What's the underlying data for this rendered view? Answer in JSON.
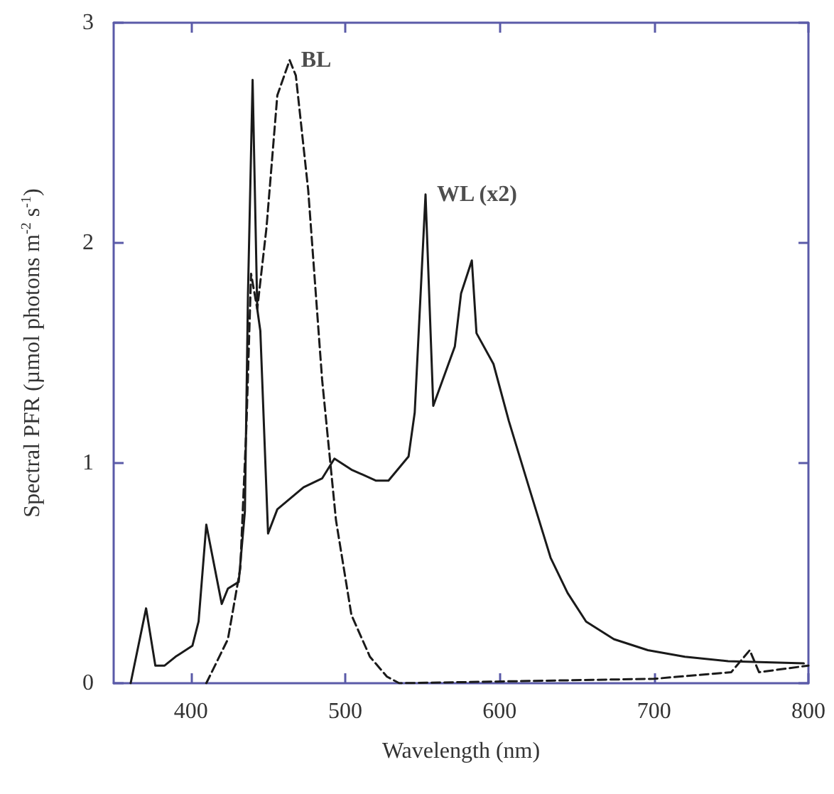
{
  "chart_data": {
    "type": "line",
    "xlabel": "Wavelength (nm)",
    "ylabel": "Spectral PFR (µmol photons m$^{-2}$ s$^{-1}$)",
    "xlim": [
      350,
      800
    ],
    "xticks": [
      400,
      500,
      600,
      700,
      800
    ],
    "ylim": [
      0,
      3
    ],
    "yticks": [
      0,
      1,
      2,
      3
    ],
    "grid": false,
    "marker": "none",
    "series": [
      {
        "color": "#1a1a1a",
        "line_style": "solid",
        "x": [
          361,
          371,
          377,
          383,
          390,
          401,
          405,
          410,
          420,
          424,
          431,
          435,
          437,
          440,
          443,
          445,
          450,
          456,
          473,
          485,
          493,
          504,
          520,
          528,
          541,
          545,
          552,
          557,
          571,
          575,
          582,
          585,
          596,
          606,
          619,
          633,
          644,
          656,
          674,
          696,
          720,
          748,
          797
        ],
        "values": [
          0,
          0.34,
          0.08,
          0.08,
          0.12,
          0.17,
          0.28,
          0.72,
          0.36,
          0.43,
          0.46,
          0.78,
          1.77,
          2.74,
          1.7,
          1.6,
          0.68,
          0.79,
          0.89,
          0.93,
          1.02,
          0.97,
          0.92,
          0.92,
          1.03,
          1.23,
          2.22,
          1.26,
          1.53,
          1.77,
          1.92,
          1.59,
          1.45,
          1.19,
          0.89,
          0.57,
          0.41,
          0.28,
          0.2,
          0.15,
          0.12,
          0.1,
          0.09
        ]
      },
      {
        "color": "#1a1a1a",
        "line_style": "dashed",
        "x": [
          410,
          424,
          432,
          436,
          439,
          443,
          449,
          456,
          464,
          468,
          476,
          485,
          494,
          504,
          516,
          527,
          535,
          700,
          750,
          762,
          768,
          800
        ],
        "values": [
          0,
          0.2,
          0.52,
          1.17,
          1.86,
          1.7,
          2.07,
          2.67,
          2.83,
          2.76,
          2.24,
          1.38,
          0.74,
          0.31,
          0.12,
          0.03,
          0,
          0.02,
          0.05,
          0.15,
          0.05,
          0.08
        ]
      }
    ],
    "annotations": [
      {
        "text": "BL",
        "x": 464,
        "y": 2.83
      },
      {
        "text": "WL (x2)",
        "x": 552,
        "y": 2.22
      }
    ]
  }
}
